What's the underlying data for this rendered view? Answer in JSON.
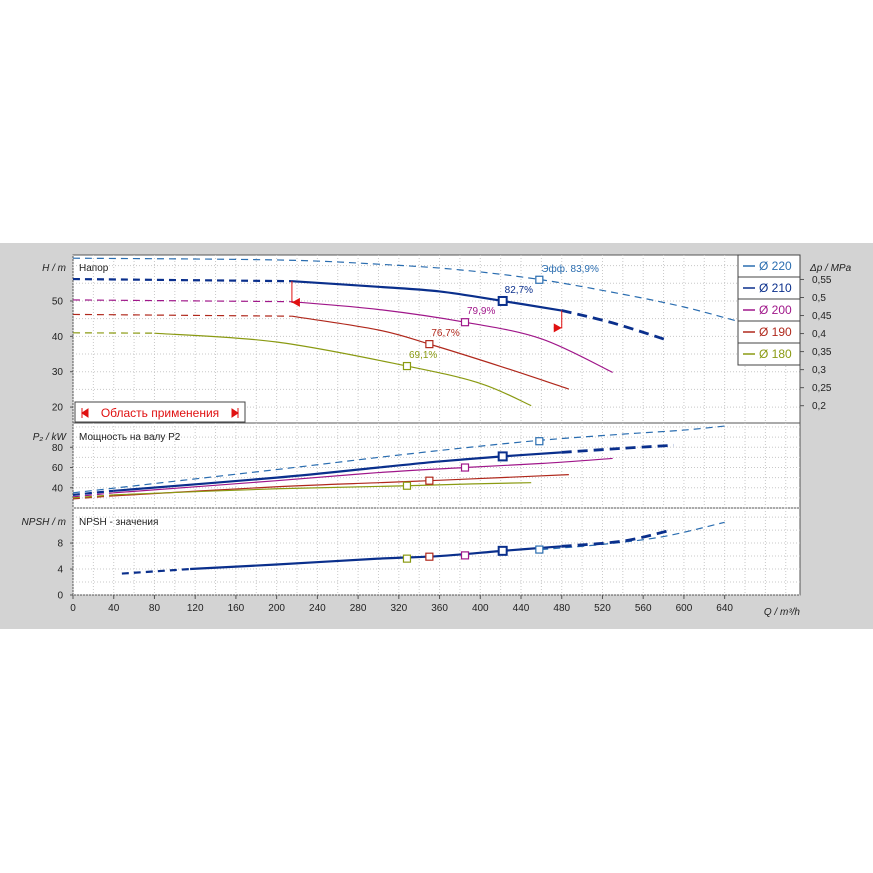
{
  "x_axis": {
    "label": "Q / m³/h",
    "ticks": [
      0,
      40,
      80,
      120,
      160,
      200,
      240,
      280,
      320,
      360,
      400,
      440,
      480,
      520,
      560,
      600,
      640
    ]
  },
  "head_panel": {
    "title": "Напор",
    "ylabel": "H / m",
    "yticks": [
      20,
      30,
      40,
      50
    ],
    "dp_label": "Δp / MPa",
    "dp_ticks": [
      "0,2",
      "0,25",
      "0,3",
      "0,35",
      "0,4",
      "0,45",
      "0,5",
      "0,55"
    ],
    "range_label": "Область применения"
  },
  "power_panel": {
    "title": "Мощность на валу P2",
    "ylabel": "P₂ / kW",
    "yticks": [
      40,
      60,
      80
    ]
  },
  "npsh_panel": {
    "title": "NPSH - значения",
    "ylabel": "NPSH / m",
    "yticks": [
      0,
      4,
      8
    ]
  },
  "legend": [
    {
      "label": "Ø 220",
      "color": "#2a6db0"
    },
    {
      "label": "Ø 210",
      "color": "#0a2f8c"
    },
    {
      "label": "Ø 200",
      "color": "#a0178a"
    },
    {
      "label": "Ø 190",
      "color": "#b0281c"
    },
    {
      "label": "Ø 180",
      "color": "#8a9a12"
    }
  ],
  "annotations": {
    "eff_220": "Эфф. 83,9%",
    "eff_210": "82,7%",
    "eff_200": "79,9%",
    "eff_190": "76,7%",
    "eff_180": "69,1%"
  },
  "chart_data": {
    "type": "line",
    "x_unit": "m³/h",
    "xlim": [
      0,
      714
    ],
    "panels": {
      "head": {
        "ylim": [
          15.5,
          63
        ],
        "ylabel": "H / m"
      },
      "power": {
        "ylim": [
          20,
          104
        ],
        "ylabel": "P₂ / kW"
      },
      "npsh": {
        "ylim": [
          0,
          13.4
        ],
        "ylabel": "NPSH / m"
      }
    },
    "series": [
      {
        "name": "Ø 220",
        "color": "#2a6db0",
        "width": 1.2,
        "head_dashed": [
          [
            0,
            62.1
          ],
          [
            200,
            61.6
          ],
          [
            300,
            60.4
          ],
          [
            380,
            58.8
          ],
          [
            460,
            56.0
          ],
          [
            540,
            51.9
          ],
          [
            600,
            48.3
          ],
          [
            650,
            44.5
          ]
        ],
        "power_dashed": [
          [
            0,
            35
          ],
          [
            200,
            58
          ],
          [
            300,
            70
          ],
          [
            380,
            79
          ],
          [
            460,
            87
          ],
          [
            540,
            93
          ],
          [
            600,
            97
          ],
          [
            640,
            101
          ]
        ],
        "npsh_dashed": [
          [
            460,
            7.0
          ],
          [
            520,
            7.8
          ],
          [
            580,
            9.0
          ],
          [
            640,
            11.2
          ]
        ],
        "bep": {
          "q": 458,
          "head": 56.0,
          "power": 86,
          "npsh": 7.0,
          "label": "Эфф. 83,9%"
        }
      },
      {
        "name": "Ø 210",
        "color": "#0a2f8c",
        "width": 2.2,
        "head_dashed": [
          [
            0,
            56.2
          ],
          [
            215,
            55.6
          ]
        ],
        "head_solid": [
          [
            215,
            55.6
          ],
          [
            300,
            54.0
          ],
          [
            360,
            52.7
          ],
          [
            422,
            50.0
          ],
          [
            480,
            47.3
          ]
        ],
        "head_tail": [
          [
            480,
            47.3
          ],
          [
            530,
            43.8
          ],
          [
            585,
            38.8
          ]
        ],
        "power_dashed": [
          [
            0,
            33
          ],
          [
            40,
            37
          ]
        ],
        "power_solid": [
          [
            40,
            37
          ],
          [
            200,
            50
          ],
          [
            300,
            60
          ],
          [
            360,
            66
          ],
          [
            422,
            71
          ],
          [
            480,
            75
          ]
        ],
        "power_tail": [
          [
            480,
            75
          ],
          [
            540,
            79
          ],
          [
            590,
            82
          ]
        ],
        "npsh_dashed": [
          [
            48,
            3.3
          ],
          [
            115,
            4.0
          ]
        ],
        "npsh_solid": [
          [
            115,
            4.0
          ],
          [
            200,
            4.7
          ],
          [
            300,
            5.6
          ],
          [
            360,
            6.0
          ],
          [
            422,
            6.8
          ],
          [
            480,
            7.5
          ]
        ],
        "npsh_tail": [
          [
            480,
            7.5
          ],
          [
            540,
            8.3
          ],
          [
            585,
            9.9
          ]
        ],
        "bep": {
          "q": 422,
          "head": 50.0,
          "power": 71,
          "npsh": 6.8,
          "label": "82,7%"
        }
      },
      {
        "name": "Ø 200",
        "color": "#a0178a",
        "width": 1.2,
        "head_dashed": [
          [
            0,
            50.3
          ],
          [
            215,
            49.8
          ]
        ],
        "head_solid": [
          [
            215,
            49.8
          ],
          [
            300,
            47.6
          ],
          [
            385,
            44.0
          ],
          [
            460,
            39.3
          ],
          [
            530,
            29.8
          ]
        ],
        "power_dashed": [
          [
            0,
            31
          ],
          [
            40,
            35
          ]
        ],
        "power_solid": [
          [
            40,
            35
          ],
          [
            200,
            47
          ],
          [
            300,
            55
          ],
          [
            385,
            60
          ],
          [
            460,
            64
          ],
          [
            530,
            69
          ]
        ],
        "npsh": {
          "q": 385,
          "value": 6.1
        },
        "bep": {
          "q": 385,
          "head": 44.0,
          "power": 60,
          "npsh": 6.1,
          "label": "79,9%"
        }
      },
      {
        "name": "Ø 190",
        "color": "#b0281c",
        "width": 1.2,
        "head_dashed": [
          [
            0,
            46.2
          ],
          [
            215,
            45.7
          ]
        ],
        "head_solid": [
          [
            215,
            45.7
          ],
          [
            300,
            41.8
          ],
          [
            350,
            37.8
          ],
          [
            420,
            31.5
          ],
          [
            487,
            25.1
          ]
        ],
        "power_dashed": [
          [
            0,
            29
          ],
          [
            40,
            32
          ]
        ],
        "power_solid": [
          [
            40,
            32
          ],
          [
            200,
            41
          ],
          [
            300,
            45
          ],
          [
            350,
            47
          ],
          [
            420,
            50
          ],
          [
            487,
            53
          ]
        ],
        "npsh": {
          "q": 350,
          "value": 5.9
        },
        "bep": {
          "q": 350,
          "head": 37.8,
          "power": 47,
          "npsh": 5.9,
          "label": "76,7%"
        }
      },
      {
        "name": "Ø 180",
        "color": "#8a9a12",
        "width": 1.2,
        "head_dashed": [
          [
            0,
            41.0
          ],
          [
            80,
            40.9
          ]
        ],
        "head_solid": [
          [
            80,
            40.9
          ],
          [
            200,
            38.4
          ],
          [
            328,
            31.6
          ],
          [
            400,
            26.7
          ],
          [
            450,
            20.4
          ]
        ],
        "power_dashed": [
          [
            0,
            30
          ],
          [
            40,
            33
          ]
        ],
        "power_solid": [
          [
            40,
            33
          ],
          [
            200,
            39
          ],
          [
            328,
            42
          ],
          [
            400,
            44
          ],
          [
            450,
            45
          ]
        ],
        "npsh": {
          "q": 328,
          "value": 5.6
        },
        "bep": {
          "q": 328,
          "head": 31.6,
          "power": 42,
          "npsh": 5.6,
          "label": "69,1%"
        }
      }
    ],
    "application_range": {
      "q_min": 215,
      "q_max": 480,
      "color": "#e01010"
    }
  }
}
